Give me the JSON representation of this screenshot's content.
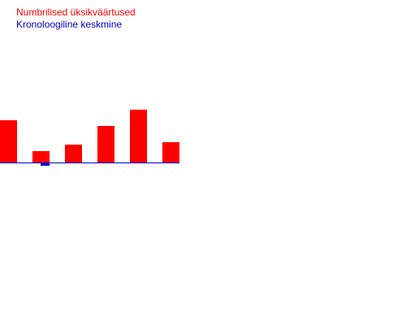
{
  "legend": {
    "items": [
      {
        "label": "Numbrilised üksikväärtused",
        "color": "#ff0000"
      },
      {
        "label": "Kronoloogiline keskmine",
        "color": "#0000cc"
      }
    ]
  },
  "chart_data": {
    "type": "bar",
    "title": "",
    "xlabel": "",
    "ylabel": "",
    "grid": false,
    "legend_placement": "top-left",
    "categories": [
      "",
      "",
      "",
      "",
      "",
      ""
    ],
    "series": [
      {
        "name": "Numbrilised üksikväärtused",
        "color": "#ff0000",
        "values": [
          52,
          14,
          22,
          45,
          65,
          25
        ]
      },
      {
        "name": "Kronoloogiline keskmine",
        "color": "#0000cc",
        "values": [
          0,
          -4,
          0,
          0,
          0,
          0
        ]
      }
    ],
    "ylim": [
      -5,
      70
    ]
  }
}
